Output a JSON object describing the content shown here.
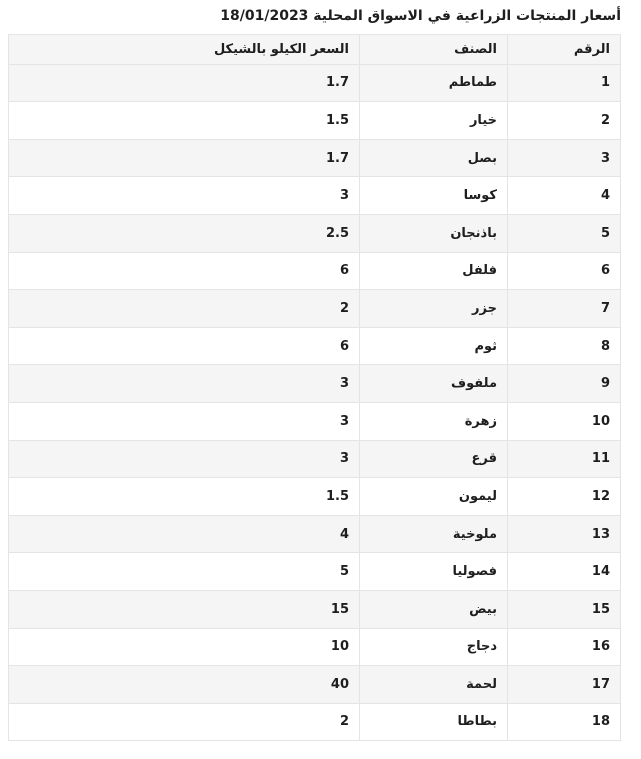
{
  "title": "أسعار المنتجات الزراعية في الاسواق المحلية 18/01/2023",
  "colors": {
    "stripe": "#f5f5f5",
    "border": "#e4e4e4",
    "text": "#1e1e1e"
  },
  "chart_data": {
    "type": "table",
    "title": "أسعار المنتجات الزراعية في الاسواق المحلية 18/01/2023",
    "columns": [
      "الرقم",
      "الصنف",
      "السعر الكيلو بالشيكل"
    ],
    "rows": [
      [
        1,
        "طماطم",
        1.7
      ],
      [
        2,
        "خيار",
        1.5
      ],
      [
        3,
        "بصل",
        1.7
      ],
      [
        4,
        "كوسا",
        3
      ],
      [
        5,
        "باذنجان",
        2.5
      ],
      [
        6,
        "فلفل",
        6
      ],
      [
        7,
        "جزر",
        2
      ],
      [
        8,
        "ثوم",
        6
      ],
      [
        9,
        "ملفوف",
        3
      ],
      [
        10,
        "زهرة",
        3
      ],
      [
        11,
        "قرع",
        3
      ],
      [
        12,
        "ليمون",
        1.5
      ],
      [
        13,
        "ملوخية",
        4
      ],
      [
        14,
        "فصوليا",
        5
      ],
      [
        15,
        "بيض",
        15
      ],
      [
        16,
        "دجاج",
        10
      ],
      [
        17,
        "لحمة",
        40
      ],
      [
        18,
        "بطاطا",
        2
      ]
    ]
  }
}
